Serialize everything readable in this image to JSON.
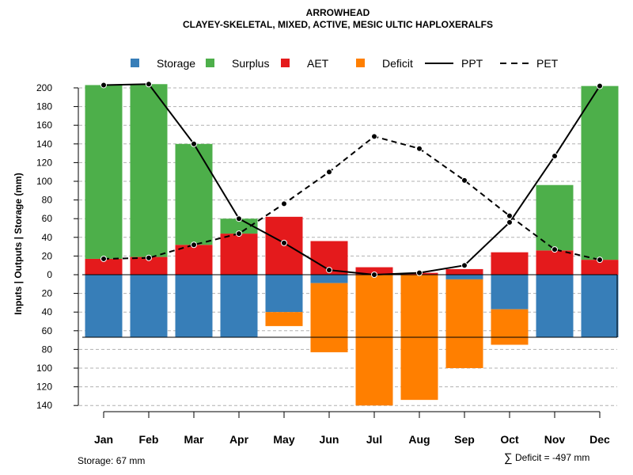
{
  "chart_data": {
    "type": "bar",
    "title": "ARROWHEAD",
    "subtitle": "CLAYEY-SKELETAL, MIXED, ACTIVE, MESIC ULTIC HAPLOXERALFS",
    "ylabel": "Inputs | Outputs | Storage     (mm)",
    "ylim_top": [
      0,
      210
    ],
    "ylim_bottom": [
      0,
      140
    ],
    "y_ticks_top": [
      0,
      20,
      40,
      60,
      80,
      100,
      120,
      140,
      160,
      180,
      200
    ],
    "y_ticks_bottom": [
      20,
      40,
      60,
      80,
      100,
      120,
      140
    ],
    "categories": [
      "Jan",
      "Feb",
      "Mar",
      "Apr",
      "May",
      "Jun",
      "Jul",
      "Aug",
      "Sep",
      "Oct",
      "Nov",
      "Dec"
    ],
    "series": [
      {
        "name": "AET",
        "color": "#E41A1C",
        "direction": "up",
        "values": [
          17,
          19,
          32,
          44,
          62,
          36,
          8,
          2,
          6,
          24,
          26,
          16
        ]
      },
      {
        "name": "Surplus",
        "color": "#4DAF4A",
        "direction": "up",
        "values": [
          186,
          185,
          108,
          16,
          0,
          0,
          0,
          0,
          0,
          0,
          70,
          186
        ]
      },
      {
        "name": "Storage",
        "color": "#377EB8",
        "direction": "down",
        "values": [
          67,
          67,
          67,
          67,
          40,
          9,
          0,
          0,
          5,
          37,
          67,
          67
        ]
      },
      {
        "name": "Deficit",
        "color": "#FF7F00",
        "direction": "down",
        "values": [
          0,
          0,
          0,
          0,
          15,
          74,
          140,
          134,
          95,
          38,
          0,
          0
        ]
      },
      {
        "name": "PPT",
        "color": "#000000",
        "style": "solid",
        "values": [
          203,
          204,
          140,
          60,
          34,
          5,
          0,
          2,
          10,
          56,
          127,
          202
        ]
      },
      {
        "name": "PET",
        "color": "#000000",
        "style": "dashed",
        "values": [
          17,
          18,
          32,
          44,
          76,
          110,
          148,
          135,
          101,
          63,
          27,
          16
        ]
      }
    ],
    "storage_capacity": 67,
    "legend": [
      "Storage",
      "Surplus",
      "AET",
      "Deficit",
      "PPT",
      "PET"
    ],
    "legend_position": "top",
    "grid": true
  },
  "footer": {
    "storage_text": "Storage: 67 mm",
    "deficit_symbol": "∑",
    "deficit_text": "Deficit = -497 mm"
  }
}
